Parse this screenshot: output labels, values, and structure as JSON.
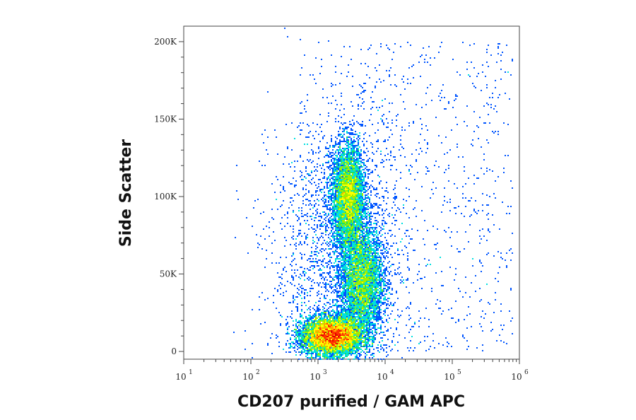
{
  "chart_data": {
    "type": "scatter",
    "style": "flow cytometry density dot plot (pseudocolor)",
    "xlabel": "CD207 purified / GAM APC",
    "ylabel": "Side Scatter",
    "x_scale": "log",
    "xlim": [
      10,
      1000000
    ],
    "ylim": [
      -5000,
      210000
    ],
    "x_ticks": [
      {
        "base": "10",
        "exp": "1",
        "value": 10
      },
      {
        "base": "10",
        "exp": "2",
        "value": 100
      },
      {
        "base": "10",
        "exp": "3",
        "value": 1000
      },
      {
        "base": "10",
        "exp": "4",
        "value": 10000
      },
      {
        "base": "10",
        "exp": "5",
        "value": 100000
      },
      {
        "base": "10",
        "exp": "6",
        "value": 1000000
      }
    ],
    "y_ticks": [
      {
        "label": "0",
        "value": 0
      },
      {
        "label": "50K",
        "value": 50000
      },
      {
        "label": "100K",
        "value": 100000
      },
      {
        "label": "150K",
        "value": 150000
      },
      {
        "label": "200K",
        "value": 200000
      }
    ],
    "colormap": [
      "#0000cc",
      "#0055ff",
      "#00aaff",
      "#00e0e0",
      "#20e060",
      "#a0f000",
      "#ffff00",
      "#ffaa00",
      "#ff3300",
      "#e00000"
    ],
    "populations": [
      {
        "label_visible": false,
        "x_center": 1600,
        "y_center": 10000,
        "x_spread_decades": 0.22,
        "y_spread": 6000,
        "density": "highest"
      },
      {
        "label_visible": false,
        "x_center": 2800,
        "y_center": 100000,
        "x_spread_decades": 0.12,
        "y_spread": 17000,
        "density": "medium"
      },
      {
        "label_visible": false,
        "x_center": 4500,
        "y_center": 45000,
        "x_spread_decades": 0.16,
        "y_spread": 18000,
        "density": "medium"
      }
    ],
    "grid": false,
    "legend": "none"
  }
}
